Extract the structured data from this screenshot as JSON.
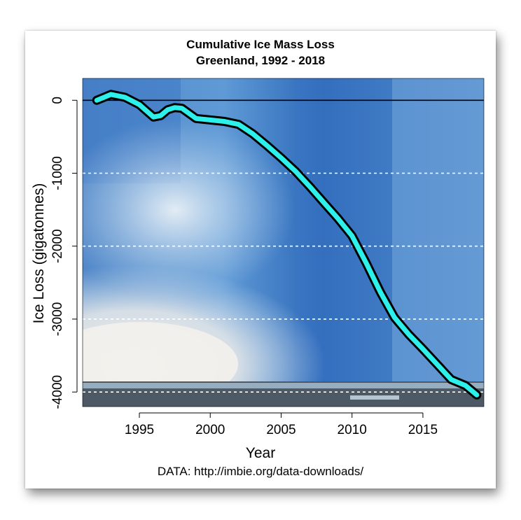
{
  "chart_data": {
    "type": "line",
    "title": "Cumulative Ice Mass Loss",
    "subtitle": "Greenland, 1992 - 2018",
    "xlabel": "Year",
    "ylabel": "Ice Loss (gigatonnes)",
    "caption": "DATA: http://imbie.org/data-downloads/",
    "xlim": [
      1991,
      2019.3
    ],
    "ylim": [
      -4200,
      300
    ],
    "xticks": [
      1995,
      2000,
      2005,
      2010,
      2015
    ],
    "yticks": [
      0,
      -1000,
      -2000,
      -3000,
      -4000
    ],
    "grid": "dashed horizontal at -1000, -2000, -3000, -4000",
    "reference_line": 0,
    "series": [
      {
        "color": "#2ef0ea",
        "outline": "#000000",
        "x": [
          1992,
          1992.5,
          1993,
          1994,
          1995,
          1996,
          1996.5,
          1997,
          1997.5,
          1998,
          1999,
          2000,
          2001,
          2002,
          2003,
          2004,
          2005,
          2006,
          2007,
          2008,
          2009,
          2010,
          2011,
          2012,
          2013,
          2014,
          2015,
          2016,
          2017,
          2018,
          2018.8
        ],
        "values": [
          0,
          40,
          80,
          40,
          -60,
          -230,
          -210,
          -130,
          -100,
          -110,
          -250,
          -270,
          -290,
          -330,
          -460,
          -620,
          -790,
          -970,
          -1180,
          -1400,
          -1620,
          -1860,
          -2230,
          -2630,
          -2980,
          -3210,
          -3410,
          -3620,
          -3830,
          -3910,
          -4040
        ]
      }
    ]
  }
}
